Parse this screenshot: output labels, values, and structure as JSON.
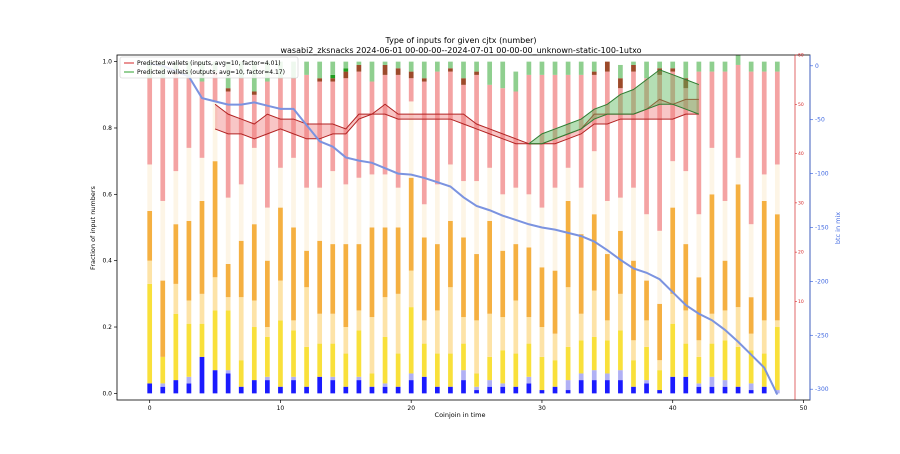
{
  "chart_data": {
    "type": "bar",
    "title": "Type of inputs for given cjtx (number)",
    "subtitle": "wasabi2_zksnacks 2024-06-01 00-00-00--2024-07-01 00-00-00_unknown-static-100-1utxo",
    "xlabel": "Coinjoin in time",
    "ylabel": "Fraction of input numbers",
    "right_ylabel": "btc in mix",
    "xlim": [
      -2.5,
      50.5
    ],
    "ylim": [
      -0.02,
      1.02
    ],
    "red_ylim": [
      -10,
      60
    ],
    "blue_ylim": [
      -310,
      10
    ],
    "xticks": [
      0,
      10,
      20,
      30,
      40,
      50
    ],
    "yticks": [
      0.0,
      0.2,
      0.4,
      0.6,
      0.8,
      1.0
    ],
    "red_yticks": [
      10,
      20,
      30,
      40,
      50,
      60
    ],
    "blue_yticks": [
      0,
      -50,
      -100,
      -150,
      -200,
      -250,
      -300
    ],
    "grid": false,
    "legend_position": "top-left",
    "legend": [
      {
        "label": "Predicted wallets (inputs, avg=10, factor=4.01)",
        "color": "#d62728"
      },
      {
        "label": "Predicted wallets (outputs, avg=10, factor=4.17)",
        "color": "#2ca02c"
      }
    ],
    "stack_colors": [
      "#1a1aff",
      "#b0b0f5",
      "#f9e03a",
      "#fde3a7",
      "#f5b041",
      "#fdf5e6",
      "#f4a3a3",
      "#9c4a2a",
      "#1e9c1e",
      "#8fcf8f"
    ],
    "stacks": {
      "x": [
        0,
        1,
        2,
        3,
        4,
        5,
        6,
        7,
        8,
        9,
        10,
        11,
        12,
        13,
        14,
        15,
        16,
        17,
        18,
        19,
        20,
        21,
        22,
        23,
        24,
        25,
        26,
        27,
        28,
        29,
        30,
        31,
        32,
        33,
        34,
        35,
        36,
        37,
        38,
        39,
        40,
        41,
        42,
        43,
        44,
        45,
        46,
        47,
        48
      ],
      "blue": [
        0.03,
        0.02,
        0.04,
        0.03,
        0.11,
        0.07,
        0.06,
        0.02,
        0.04,
        0.04,
        0.02,
        0.04,
        0.02,
        0.05,
        0.04,
        0.02,
        0.04,
        0.02,
        0.02,
        0.02,
        0.04,
        0.05,
        0.02,
        0.02,
        0.04,
        0.01,
        0.02,
        0.02,
        0.02,
        0.03,
        0.01,
        0.02,
        0.01,
        0.04,
        0.04,
        0.04,
        0.04,
        0.02,
        0.03,
        0.01,
        0.05,
        0.05,
        0.02,
        0.02,
        0.02,
        0.02,
        0.01,
        0.02,
        0.0
      ],
      "lavender": [
        0.0,
        0.01,
        0.0,
        0.02,
        0.0,
        0.0,
        0.01,
        0.0,
        0.0,
        0.01,
        0.0,
        0.01,
        0.0,
        0.0,
        0.01,
        0.0,
        0.01,
        0.0,
        0.01,
        0.0,
        0.02,
        0.0,
        0.0,
        0.0,
        0.03,
        0.01,
        0.02,
        0.01,
        0.0,
        0.02,
        0.0,
        0.0,
        0.03,
        0.02,
        0.03,
        0.02,
        0.03,
        0.0,
        0.01,
        0.0,
        0.0,
        0.0,
        0.01,
        0.03,
        0.02,
        0.0,
        0.02,
        0.0,
        0.01
      ],
      "yellow": [
        0.3,
        0.08,
        0.2,
        0.16,
        0.1,
        0.18,
        0.18,
        0.08,
        0.16,
        0.12,
        0.2,
        0.14,
        0.12,
        0.1,
        0.1,
        0.1,
        0.14,
        0.04,
        0.14,
        0.1,
        0.2,
        0.1,
        0.1,
        0.1,
        0.08,
        0.04,
        0.07,
        0.1,
        0.1,
        0.1,
        0.1,
        0.08,
        0.1,
        0.1,
        0.1,
        0.1,
        0.12,
        0.08,
        0.1,
        0.06,
        0.16,
        0.1,
        0.08,
        0.1,
        0.12,
        0.12,
        0.1,
        0.1,
        0.19
      ],
      "peach": [
        0.07,
        0.0,
        0.09,
        0.07,
        0.09,
        0.1,
        0.04,
        0.19,
        0.08,
        0.03,
        0.12,
        0.03,
        0.18,
        0.09,
        0.09,
        0.08,
        0.06,
        0.17,
        0.12,
        0.18,
        0.11,
        0.07,
        0.13,
        0.2,
        0.08,
        0.16,
        0.13,
        0.1,
        0.16,
        0.08,
        0.09,
        0.08,
        0.18,
        0.08,
        0.14,
        0.06,
        0.11,
        0.06,
        0.08,
        0.03,
        0.09,
        0.1,
        0.05,
        0.09,
        0.09,
        0.12,
        0.05,
        0.1,
        0.02
      ],
      "orange": [
        0.15,
        0.23,
        0.18,
        0.24,
        0.28,
        0.35,
        0.1,
        0.17,
        0.23,
        0.2,
        0.22,
        0.28,
        0.11,
        0.22,
        0.21,
        0.25,
        0.2,
        0.27,
        0.21,
        0.2,
        0.28,
        0.25,
        0.2,
        0.2,
        0.24,
        0.2,
        0.28,
        0.2,
        0.17,
        0.21,
        0.18,
        0.19,
        0.26,
        0.24,
        0.23,
        0.2,
        0.19,
        0.24,
        0.12,
        0.17,
        0.26,
        0.2,
        0.19,
        0.36,
        0.15,
        0.37,
        0.11,
        0.36,
        0.32
      ],
      "cream": [
        0.14,
        0.24,
        0.16,
        0.22,
        0.13,
        0.18,
        0.2,
        0.17,
        0.23,
        0.16,
        0.12,
        0.21,
        0.19,
        0.16,
        0.22,
        0.18,
        0.2,
        0.16,
        0.16,
        0.12,
        0.23,
        0.1,
        0.18,
        0.17,
        0.17,
        0.22,
        0.16,
        0.17,
        0.17,
        0.16,
        0.18,
        0.25,
        0.1,
        0.14,
        0.19,
        0.16,
        0.1,
        0.22,
        0.2,
        0.22,
        0.14,
        0.22,
        0.19,
        0.14,
        0.18,
        0.08,
        0.22,
        0.08,
        0.15
      ],
      "pink": [
        0.26,
        0.37,
        0.29,
        0.21,
        0.23,
        0.09,
        0.32,
        0.32,
        0.16,
        0.38,
        0.27,
        0.24,
        0.34,
        0.32,
        0.27,
        0.32,
        0.32,
        0.28,
        0.3,
        0.34,
        0.07,
        0.37,
        0.34,
        0.28,
        0.29,
        0.32,
        0.25,
        0.32,
        0.29,
        0.36,
        0.4,
        0.34,
        0.28,
        0.34,
        0.23,
        0.39,
        0.33,
        0.35,
        0.41,
        0.47,
        0.27,
        0.25,
        0.43,
        0.23,
        0.39,
        0.28,
        0.46,
        0.31,
        0.28
      ],
      "brown": [
        0.0,
        0.0,
        0.01,
        0.0,
        0.0,
        0.0,
        0.01,
        0.0,
        0.01,
        0.0,
        0.0,
        0.0,
        0.0,
        0.01,
        0.01,
        0.02,
        0.02,
        0.0,
        0.03,
        0.02,
        0.02,
        0.01,
        0.0,
        0.01,
        0.02,
        0.01,
        0.0,
        0.0,
        0.0,
        0.0,
        0.0,
        0.0,
        0.0,
        0.0,
        0.01,
        0.03,
        0.03,
        0.02,
        0.0,
        0.02,
        0.01,
        0.03,
        0.0,
        0.0,
        0.0,
        0.0,
        0.0,
        0.0,
        0.0
      ],
      "green": [
        0.0,
        0.0,
        0.0,
        0.0,
        0.0,
        0.0,
        0.0,
        0.0,
        0.0,
        0.0,
        0.0,
        0.0,
        0.0,
        0.0,
        0.01,
        0.01,
        0.0,
        0.0,
        0.0,
        0.0,
        0.0,
        0.0,
        0.0,
        0.0,
        0.0,
        0.0,
        0.0,
        0.0,
        0.0,
        0.0,
        0.0,
        0.0,
        0.0,
        0.0,
        0.0,
        0.0,
        0.0,
        0.0,
        0.0,
        0.0,
        0.0,
        0.0,
        0.0,
        0.0,
        0.0,
        0.0,
        0.0,
        0.0,
        0.0
      ],
      "lightgreen": [
        0.05,
        0.05,
        0.03,
        0.05,
        0.06,
        0.03,
        0.08,
        0.05,
        0.09,
        0.06,
        0.05,
        0.05,
        0.04,
        0.05,
        0.04,
        0.02,
        0.01,
        0.06,
        0.01,
        0.02,
        0.03,
        0.05,
        0.03,
        0.02,
        0.05,
        0.03,
        0.07,
        0.08,
        0.06,
        0.04,
        0.04,
        0.04,
        0.04,
        0.04,
        0.03,
        0.0,
        0.04,
        0.01,
        0.05,
        0.02,
        0.02,
        0.05,
        0.03,
        0.03,
        0.03,
        0.03,
        0.03,
        0.03,
        0.03
      ]
    },
    "btc_in_mix": {
      "x": [
        0,
        1,
        2,
        3,
        4,
        5,
        6,
        7,
        8,
        9,
        10,
        11,
        12,
        13,
        14,
        15,
        16,
        17,
        18,
        19,
        20,
        21,
        22,
        23,
        24,
        25,
        26,
        27,
        28,
        29,
        30,
        31,
        32,
        33,
        34,
        35,
        36,
        37,
        38,
        39,
        40,
        41,
        42,
        43,
        44,
        45,
        46,
        47,
        48
      ],
      "y": [
        2,
        0,
        -5,
        -10,
        -30,
        -33,
        -36,
        -36,
        -34,
        -37,
        -40,
        -40,
        -55,
        -70,
        -75,
        -85,
        -88,
        -90,
        -95,
        -100,
        -101,
        -104,
        -108,
        -112,
        -122,
        -130,
        -134,
        -139,
        -143,
        -147,
        -150,
        -152,
        -155,
        -158,
        -163,
        -171,
        -180,
        -188,
        -192,
        -198,
        -210,
        -222,
        -230,
        -236,
        -245,
        -256,
        -268,
        -280,
        -305
      ]
    },
    "predicted_inputs": {
      "x": [
        5,
        6,
        7,
        8,
        9,
        10,
        11,
        12,
        13,
        14,
        15,
        16,
        17,
        18,
        19,
        20,
        21,
        22,
        23,
        24,
        25,
        26,
        27,
        28,
        29,
        30,
        31,
        32,
        33,
        34,
        35,
        36,
        37,
        38,
        39,
        40,
        41,
        42
      ],
      "upper": [
        50,
        48,
        47,
        46,
        48,
        47,
        47,
        46,
        46,
        46,
        45,
        48,
        48,
        50,
        48,
        48,
        48,
        48,
        48,
        48,
        46,
        45,
        44,
        43,
        42,
        42,
        43,
        44,
        45,
        48,
        48,
        48,
        48,
        49,
        51,
        50,
        51,
        51
      ],
      "lower": [
        45,
        44,
        44,
        43,
        44,
        45,
        44,
        43,
        43,
        44,
        44,
        47,
        48,
        48,
        47,
        47,
        47,
        47,
        47,
        46,
        45,
        44,
        43,
        42,
        42,
        42,
        42,
        43,
        44,
        46,
        46,
        47,
        47,
        47,
        47,
        47,
        48,
        48
      ]
    },
    "predicted_outputs": {
      "x": [
        29,
        30,
        31,
        32,
        33,
        34,
        35,
        36,
        37,
        38,
        39,
        40,
        41,
        42
      ],
      "upper": [
        42,
        44,
        45,
        46,
        47,
        49,
        50,
        52,
        53,
        55,
        57,
        56,
        55,
        54
      ],
      "lower": [
        42,
        42,
        43,
        44,
        45,
        47,
        48,
        48,
        48,
        49,
        50,
        50,
        49,
        48
      ]
    }
  }
}
